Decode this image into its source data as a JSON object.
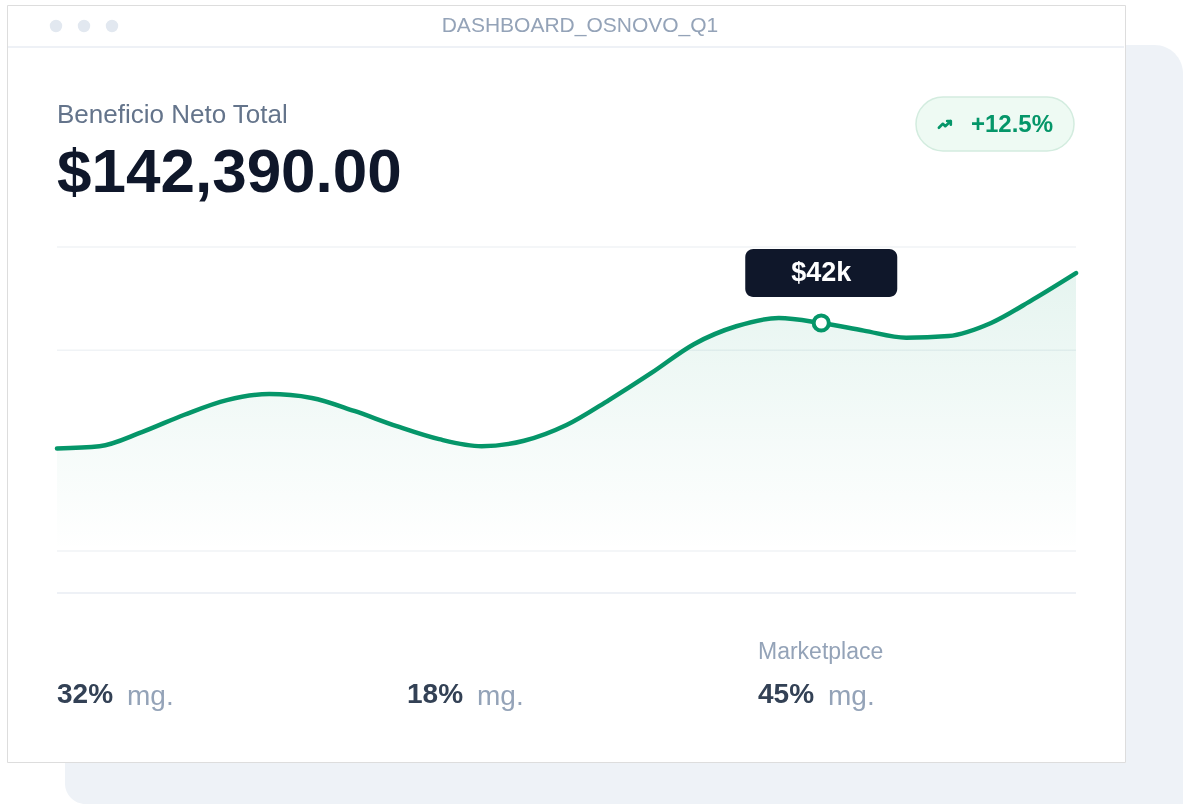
{
  "chart_data": {
    "type": "area",
    "title": "Beneficio Neto Total",
    "subtitle": "$142,390.00",
    "annotations": [
      "DASHBOARD_OSNOVO_Q1",
      "+12.5%",
      "Marketplace",
      "32% mg.",
      "18% mg.",
      "45% mg."
    ],
    "categories": [
      null,
      null,
      null,
      null,
      null,
      null,
      null,
      null,
      null,
      null,
      null,
      null,
      null,
      null,
      null,
      null,
      null,
      null,
      null,
      null,
      null,
      null,
      null,
      null,
      null
    ],
    "color": "#059669",
    "values": [
      18.9,
      19.3,
      21.9,
      25.1,
      27.8,
      28.9,
      28.2,
      25.8,
      23.0,
      20.6,
      19.3,
      20.3,
      23.2,
      27.8,
      32.8,
      38.1,
      41.4,
      42.9,
      42,
      40.6,
      39.3,
      39.6,
      42.0,
      46.4,
      51.2
    ],
    "value_labels": [
      null,
      null,
      null,
      null,
      null,
      null,
      null,
      null,
      null,
      null,
      null,
      null,
      null,
      null,
      null,
      null,
      null,
      null,
      "$42k",
      null,
      null,
      null,
      null,
      null,
      null
    ],
    "ylim": [
      0,
      56
    ],
    "yticks": [
      {
        "value": 0,
        "label": null
      },
      {
        "value": 37,
        "label": null
      },
      {
        "value": 56,
        "label": null
      }
    ],
    "grid": "y"
  }
}
